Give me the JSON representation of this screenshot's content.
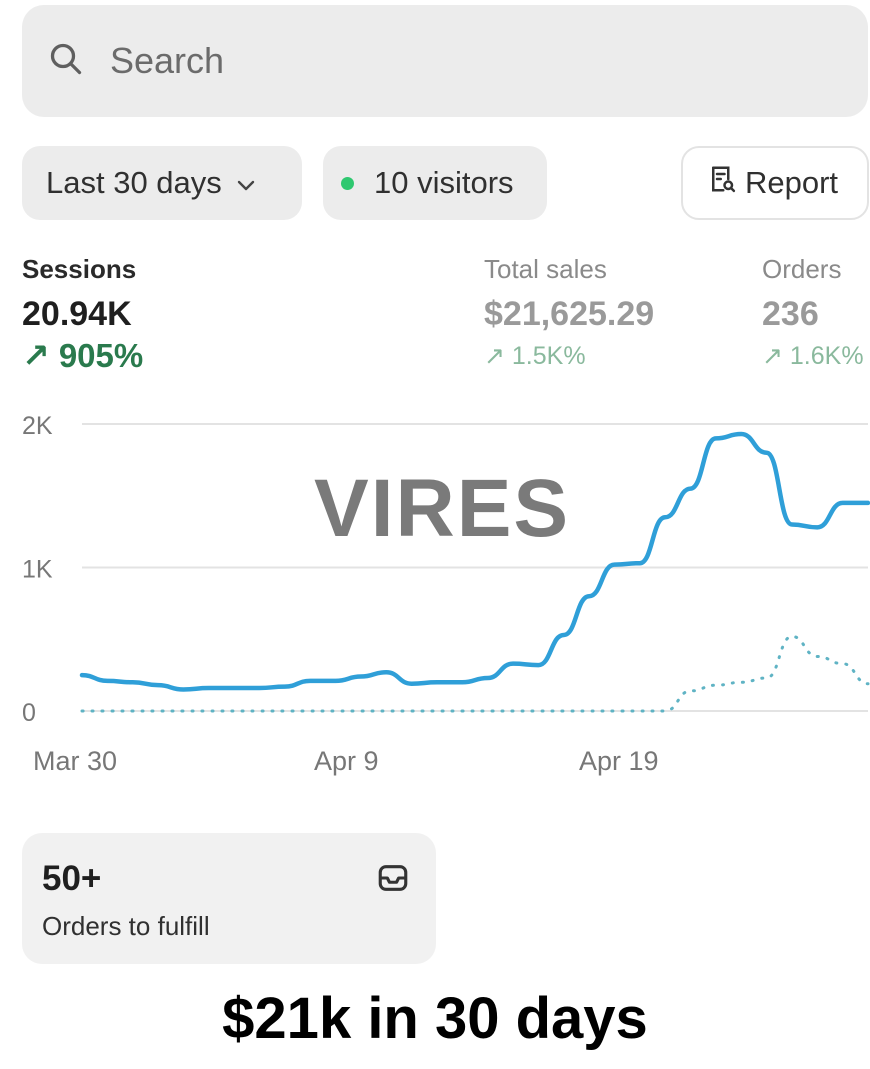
{
  "search": {
    "placeholder": "Search",
    "icon": "search-icon"
  },
  "filters": {
    "range_label": "Last 30 days",
    "visitors_label": "10 visitors",
    "visitors_dot_color": "#2fc870",
    "report_label": "Report"
  },
  "metrics": {
    "sessions": {
      "label": "Sessions",
      "value": "20.94K",
      "change": "↗ 905%"
    },
    "total_sales": {
      "label": "Total sales",
      "value": "$21,625.29",
      "change": "↗ 1.5K%"
    },
    "orders": {
      "label": "Orders",
      "value": "236",
      "change": "↗ 1.6K%"
    }
  },
  "chart_data": {
    "type": "line",
    "y_ticks": [
      "2K",
      "1K",
      "0"
    ],
    "x_ticks": [
      "Mar 30",
      "Apr 9",
      "Apr 19"
    ],
    "ylim": [
      0,
      2000
    ],
    "accent": "#2f9fd8",
    "series": [
      {
        "style": "solid",
        "values": [
          250,
          210,
          200,
          180,
          150,
          160,
          160,
          160,
          170,
          210,
          210,
          240,
          270,
          190,
          200,
          200,
          230,
          330,
          320,
          530,
          800,
          1020,
          1030,
          1350,
          1550,
          1900,
          1930,
          1800,
          1300,
          1280,
          1450,
          1450
        ]
      },
      {
        "style": "dotted",
        "values": [
          0,
          0,
          0,
          0,
          0,
          0,
          0,
          0,
          0,
          0,
          0,
          0,
          0,
          0,
          0,
          0,
          0,
          0,
          0,
          0,
          0,
          0,
          0,
          0,
          140,
          180,
          200,
          230,
          520,
          380,
          330,
          190
        ]
      }
    ]
  },
  "watermark": "VIRES",
  "fulfill": {
    "count": "50+",
    "label": "Orders to fulfill"
  },
  "caption": "$21k in 30 days"
}
